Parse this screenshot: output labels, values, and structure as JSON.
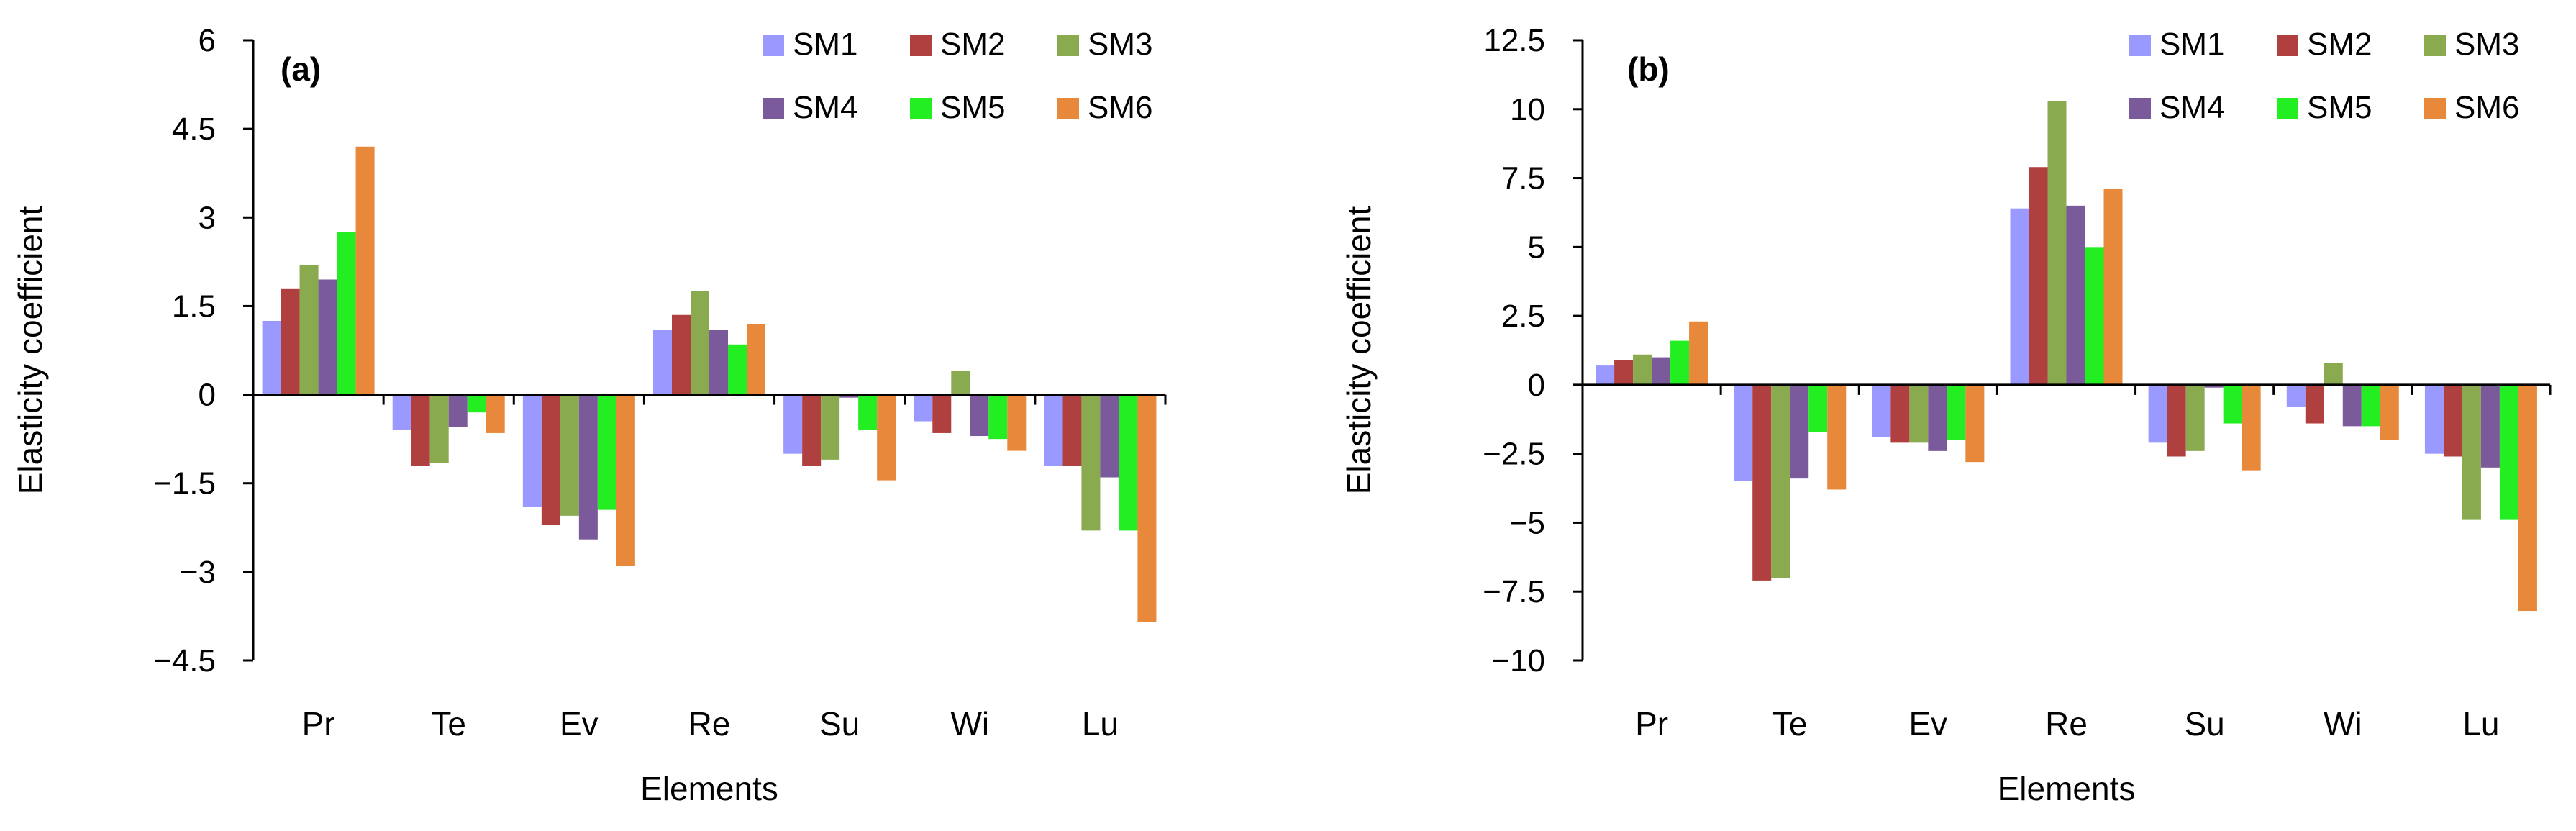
{
  "chart_data": [
    {
      "type": "bar",
      "panel_label": "(a)",
      "xlabel": "Elements",
      "ylabel": "Elasticity  coefficient",
      "categories": [
        "Pr",
        "Te",
        "Ev",
        "Re",
        "Su",
        "Wi",
        "Lu"
      ],
      "ylim": [
        -4.5,
        6
      ],
      "yticks": [
        6,
        4.5,
        3,
        1.5,
        0,
        -1.5,
        -3,
        -4.5
      ],
      "ytick_labels": [
        "6",
        "4.5",
        "3",
        "1.5",
        "0",
        "−1.5",
        "−3",
        "−4.5"
      ],
      "grid": false,
      "legend_position": "top-right",
      "series": [
        {
          "name": "SM1",
          "color": "#9999ff",
          "values": [
            1.25,
            -0.6,
            -1.9,
            1.1,
            -1.0,
            -0.45,
            -1.2
          ]
        },
        {
          "name": "SM2",
          "color": "#b04040",
          "values": [
            1.8,
            -1.2,
            -2.2,
            1.35,
            -1.2,
            -0.65,
            -1.2
          ]
        },
        {
          "name": "SM3",
          "color": "#8aaa50",
          "values": [
            2.2,
            -1.15,
            -2.05,
            1.75,
            -1.1,
            0.4,
            -2.3
          ]
        },
        {
          "name": "SM4",
          "color": "#7a5a9a",
          "values": [
            1.95,
            -0.55,
            -2.45,
            1.1,
            -0.05,
            -0.7,
            -1.4
          ]
        },
        {
          "name": "SM5",
          "color": "#22ee22",
          "values": [
            2.75,
            -0.3,
            -1.95,
            0.85,
            -0.6,
            -0.75,
            -2.3
          ]
        },
        {
          "name": "SM6",
          "color": "#e8883a",
          "values": [
            4.2,
            -0.65,
            -2.9,
            1.2,
            -1.45,
            -0.95,
            -3.85
          ]
        }
      ]
    },
    {
      "type": "bar",
      "panel_label": "(b)",
      "xlabel": "Elements",
      "ylabel": "Elasticity coefficient",
      "categories": [
        "Pr",
        "Te",
        "Ev",
        "Re",
        "Su",
        "Wi",
        "Lu"
      ],
      "ylim": [
        -10,
        12.5
      ],
      "yticks": [
        12.5,
        10,
        7.5,
        5,
        2.5,
        0,
        -2.5,
        -5,
        -7.5,
        -10
      ],
      "ytick_labels": [
        "12.5",
        "10",
        "7.5",
        "5",
        "2.5",
        "0",
        "−2.5",
        "−5",
        "−7.5",
        "−10"
      ],
      "grid": false,
      "legend_position": "top-right",
      "series": [
        {
          "name": "SM1",
          "color": "#9999ff",
          "values": [
            0.7,
            -3.5,
            -1.9,
            6.4,
            -2.1,
            -0.8,
            -2.5
          ]
        },
        {
          "name": "SM2",
          "color": "#b04040",
          "values": [
            0.9,
            -7.1,
            -2.1,
            7.9,
            -2.6,
            -1.4,
            -2.6
          ]
        },
        {
          "name": "SM3",
          "color": "#8aaa50",
          "values": [
            1.1,
            -7.0,
            -2.1,
            10.3,
            -2.4,
            0.8,
            -4.9
          ]
        },
        {
          "name": "SM4",
          "color": "#7a5a9a",
          "values": [
            1.0,
            -3.4,
            -2.4,
            6.5,
            -0.1,
            -1.5,
            -3.0
          ]
        },
        {
          "name": "SM5",
          "color": "#22ee22",
          "values": [
            1.6,
            -1.7,
            -2.0,
            5.0,
            -1.4,
            -1.5,
            -4.9
          ]
        },
        {
          "name": "SM6",
          "color": "#e8883a",
          "values": [
            2.3,
            -3.8,
            -2.8,
            7.1,
            -3.1,
            -2.0,
            -8.2
          ]
        }
      ]
    }
  ]
}
